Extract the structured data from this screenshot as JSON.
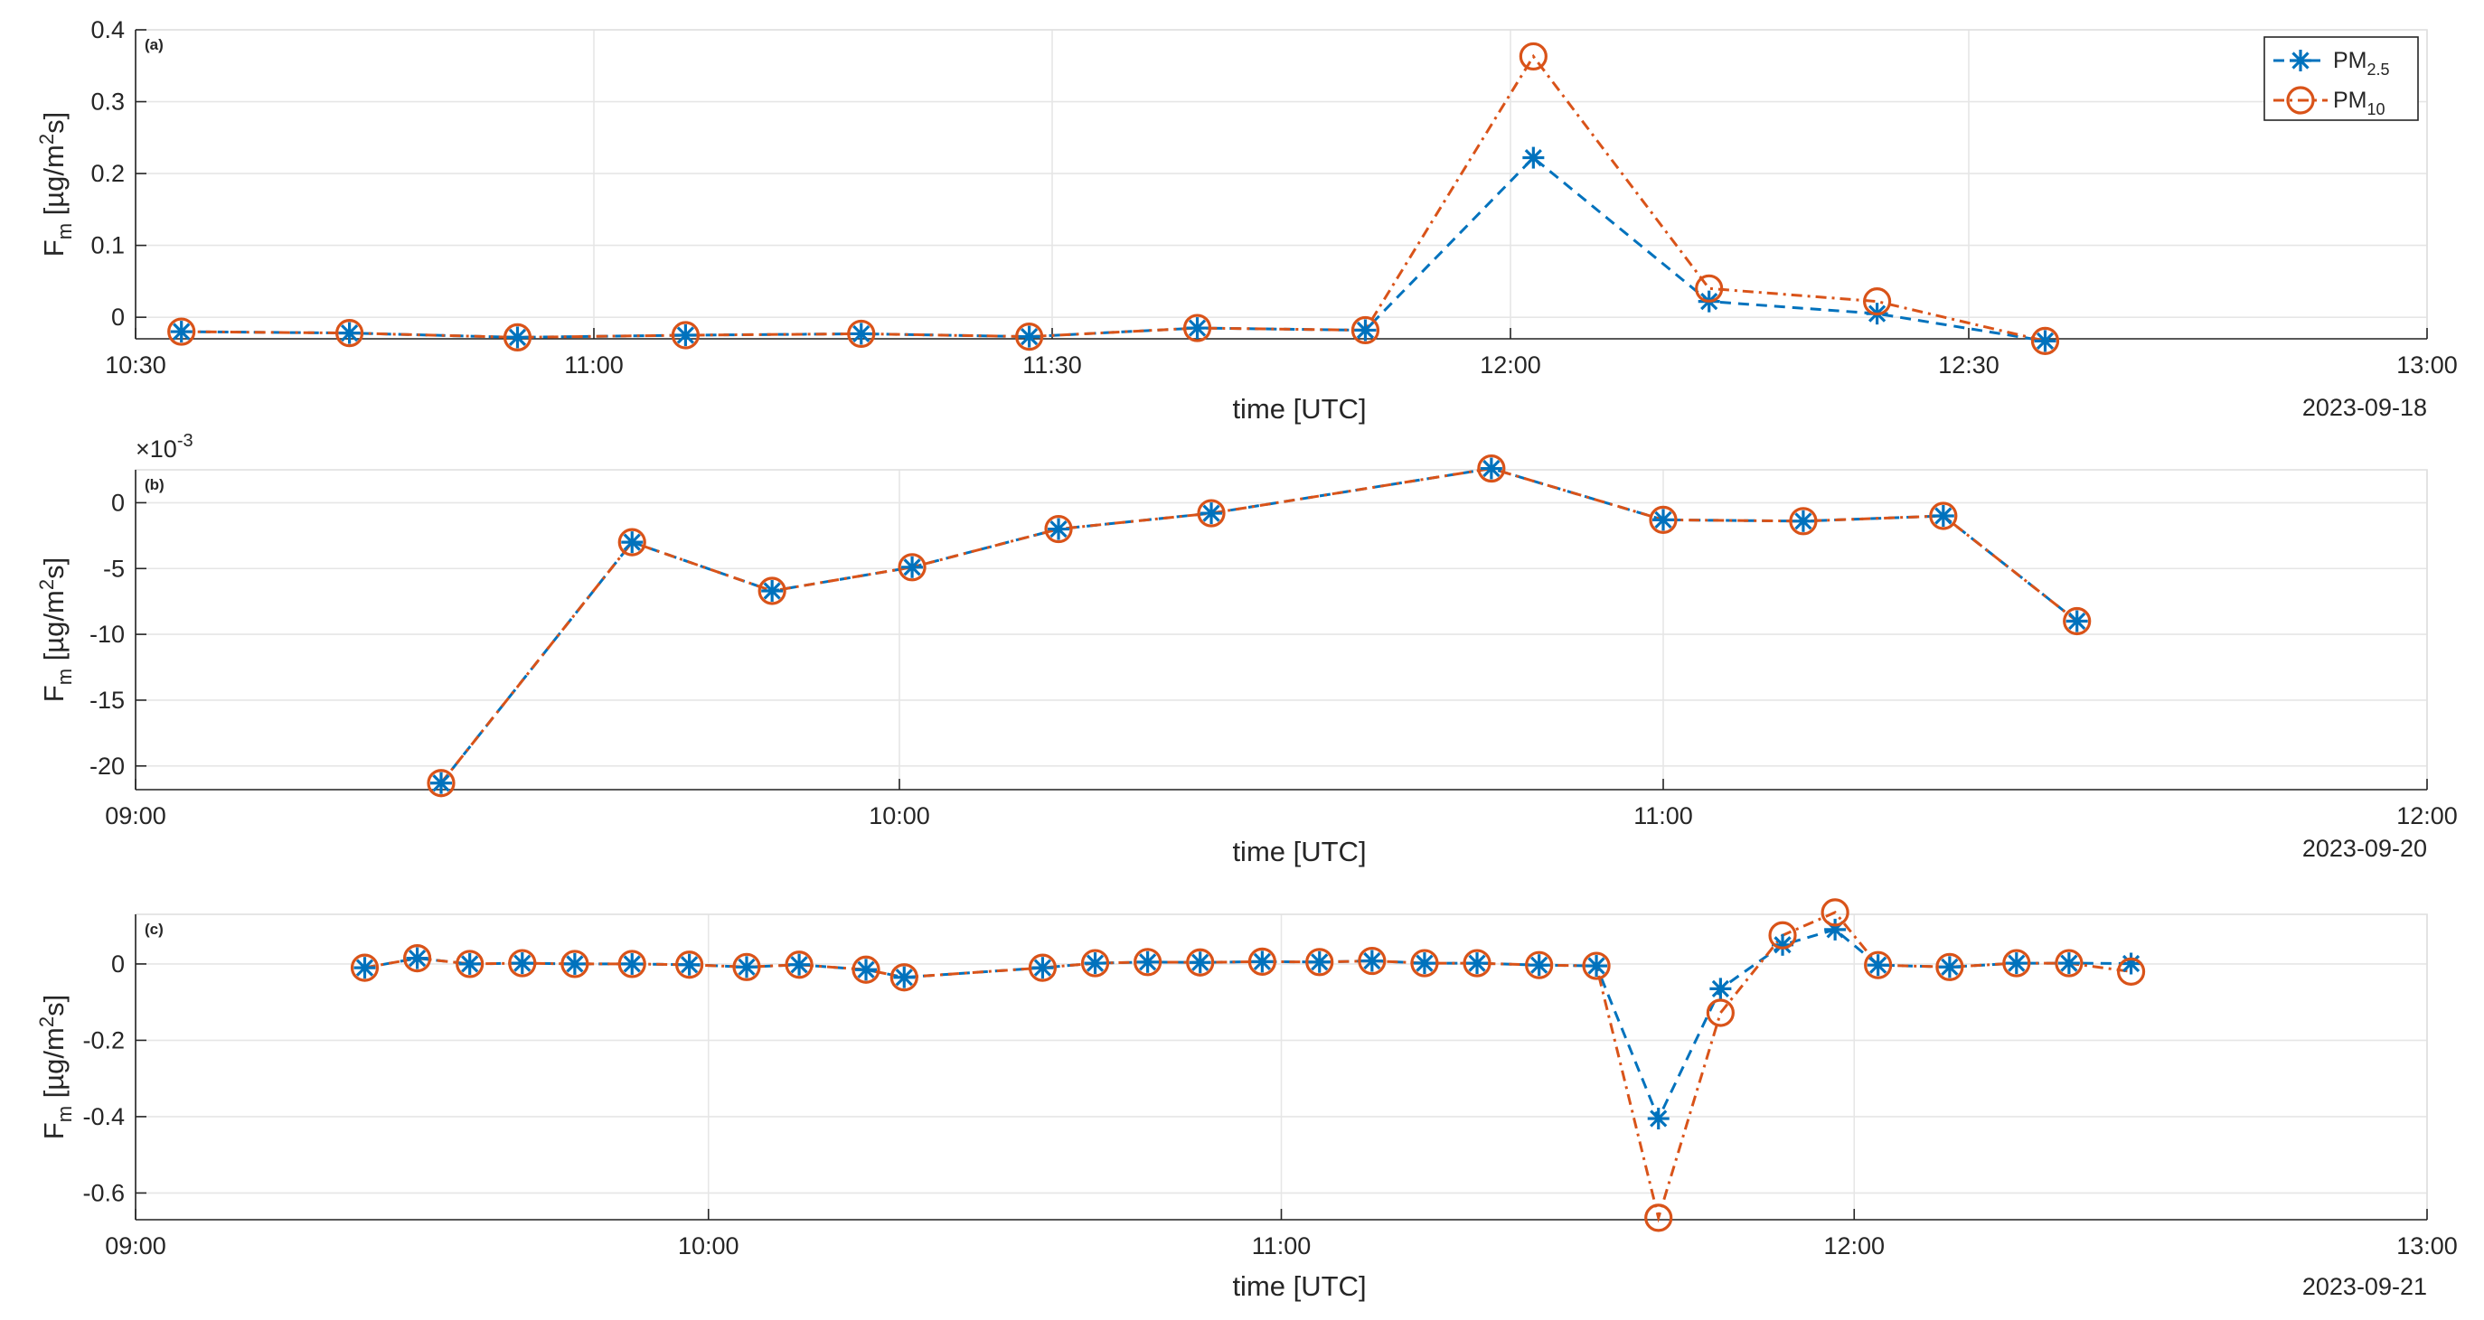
{
  "chart_data": [
    {
      "type": "line",
      "panel_label": "(a)",
      "title": "",
      "xlabel": "time [UTC]",
      "ylabel": "F",
      "ylabel_sub": "m",
      "yunit_pre": "[µg/m",
      "yunit_sup": "2",
      "yunit_post": "s]",
      "date_label": "2023-09-18",
      "grid": true,
      "xlim": [
        630,
        780
      ],
      "ylim": [
        -0.03,
        0.4
      ],
      "xticks": [
        630,
        660,
        690,
        720,
        750,
        780
      ],
      "xtick_labels": [
        "10:30",
        "11:00",
        "11:30",
        "12:00",
        "12:30",
        "13:00"
      ],
      "yticks": [
        0,
        0.1,
        0.2,
        0.3,
        0.4
      ],
      "ytick_labels": [
        "0",
        "0.1",
        "0.2",
        "0.3",
        "0.4"
      ],
      "legend": {
        "position": "top-right",
        "entries": [
          {
            "base": "PM",
            "sub": "2.5"
          },
          {
            "base": "PM",
            "sub": "10"
          }
        ]
      },
      "series": [
        {
          "name": "PM2.5",
          "x": [
            633,
            644,
            655,
            666,
            677.5,
            688.5,
            699.5,
            710.5,
            721.5,
            733,
            744,
            755
          ],
          "values": [
            -0.02,
            -0.022,
            -0.028,
            -0.025,
            -0.023,
            -0.027,
            -0.015,
            -0.018,
            0.222,
            0.022,
            0.005,
            -0.033
          ]
        },
        {
          "name": "PM10",
          "x": [
            633,
            644,
            655,
            666,
            677.5,
            688.5,
            699.5,
            710.5,
            721.5,
            733,
            744,
            755
          ],
          "values": [
            -0.02,
            -0.022,
            -0.028,
            -0.025,
            -0.023,
            -0.027,
            -0.015,
            -0.018,
            0.363,
            0.04,
            0.022,
            -0.033
          ]
        }
      ]
    },
    {
      "type": "line",
      "panel_label": "(b)",
      "title": "",
      "xlabel": "time [UTC]",
      "ylabel": "F",
      "ylabel_sub": "m",
      "yunit_pre": "[µg/m",
      "yunit_sup": "2",
      "yunit_post": "s]",
      "date_label": "2023-09-20",
      "exponent_label": "×10",
      "exponent_power": "-3",
      "grid": true,
      "xlim": [
        540,
        720
      ],
      "ylim": [
        -21.8,
        2.5
      ],
      "xticks": [
        540,
        600,
        660,
        720
      ],
      "xtick_labels": [
        "09:00",
        "10:00",
        "11:00",
        "12:00"
      ],
      "yticks": [
        -20,
        -15,
        -10,
        -5,
        0
      ],
      "ytick_labels": [
        "-20",
        "-15",
        "-10",
        "-5",
        "0"
      ],
      "series": [
        {
          "name": "PM2.5",
          "x": [
            564,
            579,
            590,
            601,
            612.5,
            624.5,
            646.5,
            660,
            671,
            682,
            692.5
          ],
          "values": [
            -21.3,
            -3,
            -6.7,
            -4.9,
            -2,
            -0.8,
            2.6,
            -1.3,
            -1.4,
            -1,
            -9
          ]
        },
        {
          "name": "PM10",
          "x": [
            564,
            579,
            590,
            601,
            612.5,
            624.5,
            646.5,
            660,
            671,
            682,
            692.5
          ],
          "values": [
            -21.3,
            -3,
            -6.7,
            -4.9,
            -2,
            -0.8,
            2.6,
            -1.3,
            -1.4,
            -1,
            -9
          ]
        }
      ]
    },
    {
      "type": "line",
      "panel_label": "(c)",
      "title": "",
      "xlabel": "time [UTC]",
      "ylabel": "F",
      "ylabel_sub": "m",
      "yunit_pre": "[µg/m",
      "yunit_sup": "2",
      "yunit_post": "s]",
      "date_label": "2023-09-21",
      "grid": true,
      "xlim": [
        540,
        780
      ],
      "ylim": [
        -0.67,
        0.13
      ],
      "xticks": [
        540,
        600,
        660,
        720,
        780
      ],
      "xtick_labels": [
        "09:00",
        "10:00",
        "11:00",
        "12:00",
        "13:00"
      ],
      "yticks": [
        -0.6,
        -0.4,
        -0.2,
        0
      ],
      "ytick_labels": [
        "-0.6",
        "-0.4",
        "-0.2",
        "0"
      ],
      "series": [
        {
          "name": "PM2.5",
          "x": [
            564,
            569.5,
            575,
            580.5,
            586,
            592,
            598,
            604,
            609.5,
            616.5,
            620.5,
            635,
            640.5,
            646,
            651.5,
            658,
            664,
            669.5,
            675,
            680.5,
            687,
            693,
            699.5,
            706,
            712.5,
            718,
            722.5,
            730,
            737,
            742.5,
            749
          ],
          "values": [
            -0.01,
            0.015,
            0,
            0.002,
            0,
            0,
            -0.002,
            -0.008,
            -0.002,
            -0.015,
            -0.035,
            -0.01,
            0.002,
            0.005,
            0.004,
            0.006,
            0.005,
            0.008,
            0.002,
            0.002,
            -0.003,
            -0.005,
            -0.405,
            -0.065,
            0.05,
            0.09,
            -0.003,
            -0.008,
            0.002,
            0.002,
            0.001
          ]
        },
        {
          "name": "PM10",
          "x": [
            564,
            569.5,
            575,
            580.5,
            586,
            592,
            598,
            604,
            609.5,
            616.5,
            620.5,
            635,
            640.5,
            646,
            651.5,
            658,
            664,
            669.5,
            675,
            680.5,
            687,
            693,
            699.5,
            706,
            712.5,
            718,
            722.5,
            730,
            737,
            742.5,
            749
          ],
          "values": [
            -0.01,
            0.015,
            0,
            0.002,
            0,
            0,
            -0.002,
            -0.008,
            -0.002,
            -0.015,
            -0.035,
            -0.01,
            0.002,
            0.005,
            0.004,
            0.006,
            0.005,
            0.008,
            0.002,
            0.002,
            -0.003,
            -0.005,
            -0.665,
            -0.128,
            0.075,
            0.135,
            -0.003,
            -0.008,
            0.002,
            0.002,
            -0.02
          ]
        }
      ]
    }
  ],
  "colors": {
    "pm25": "#0072BD",
    "pm10": "#D95319",
    "text": "#262626",
    "grid": "#e6e6e6"
  }
}
